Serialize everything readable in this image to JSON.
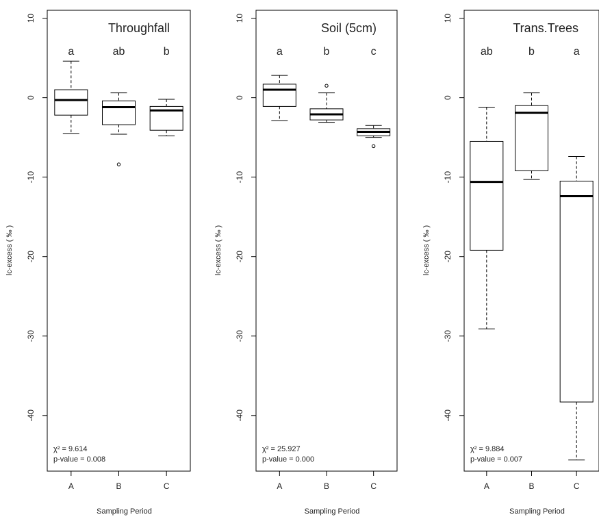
{
  "chart_data": [
    {
      "type": "boxplot",
      "title": "Throughfall",
      "xlabel": "Sampling Period",
      "ylabel": "lc-excess ( ‰ )",
      "ylim": [
        -47,
        11
      ],
      "yticks": [
        10,
        0,
        -10,
        -20,
        -30,
        -40
      ],
      "categories": [
        "A",
        "B",
        "C"
      ],
      "letters": [
        "a",
        "ab",
        "b"
      ],
      "boxes": [
        {
          "whisker_low": -4.5,
          "q1": -2.2,
          "median": -0.3,
          "q3": 1.0,
          "whisker_high": 4.6,
          "outliers": []
        },
        {
          "whisker_low": -4.6,
          "q1": -3.4,
          "median": -1.2,
          "q3": -0.4,
          "whisker_high": 0.6,
          "outliers": [
            -8.4
          ]
        },
        {
          "whisker_low": -4.8,
          "q1": -4.1,
          "median": -1.6,
          "q3": -1.1,
          "whisker_high": -0.2,
          "outliers": []
        }
      ],
      "stat_line1": "χ² = 9.614",
      "stat_line2": "p-value = 0.008"
    },
    {
      "type": "boxplot",
      "title": "Soil (5cm)",
      "xlabel": "Sampling Period",
      "ylabel": "lc-excess ( ‰ )",
      "ylim": [
        -47,
        11
      ],
      "yticks": [
        10,
        0,
        -10,
        -20,
        -30,
        -40
      ],
      "categories": [
        "A",
        "B",
        "C"
      ],
      "letters": [
        "a",
        "b",
        "c"
      ],
      "boxes": [
        {
          "whisker_low": -2.9,
          "q1": -1.1,
          "median": 1.0,
          "q3": 1.7,
          "whisker_high": 2.8,
          "outliers": []
        },
        {
          "whisker_low": -3.1,
          "q1": -2.8,
          "median": -2.1,
          "q3": -1.4,
          "whisker_high": 0.6,
          "outliers": [
            1.5
          ]
        },
        {
          "whisker_low": -5.0,
          "q1": -4.8,
          "median": -4.3,
          "q3": -3.9,
          "whisker_high": -3.5,
          "outliers": [
            -6.1
          ]
        }
      ],
      "stat_line1": "χ² = 25.927",
      "stat_line2": "p-value = 0.000"
    },
    {
      "type": "boxplot",
      "title": "Trans.Trees",
      "xlabel": "Sampling Period",
      "ylabel": "lc-excess ( ‰ )",
      "ylim": [
        -47,
        11
      ],
      "yticks": [
        10,
        0,
        -10,
        -20,
        -30,
        -40
      ],
      "categories": [
        "A",
        "B",
        "C"
      ],
      "letters": [
        "ab",
        "b",
        "a"
      ],
      "boxes": [
        {
          "whisker_low": -29.1,
          "q1": -19.2,
          "median": -10.6,
          "q3": -5.5,
          "whisker_high": -1.2,
          "outliers": []
        },
        {
          "whisker_low": -10.3,
          "q1": -9.2,
          "median": -1.9,
          "q3": -1.0,
          "whisker_high": 0.6,
          "outliers": []
        },
        {
          "whisker_low": -45.6,
          "q1": -38.3,
          "median": -12.4,
          "q3": -10.5,
          "whisker_high": -7.4,
          "outliers": []
        }
      ],
      "stat_line1": "χ² = 9.884",
      "stat_line2": "p-value = 0.007"
    }
  ]
}
